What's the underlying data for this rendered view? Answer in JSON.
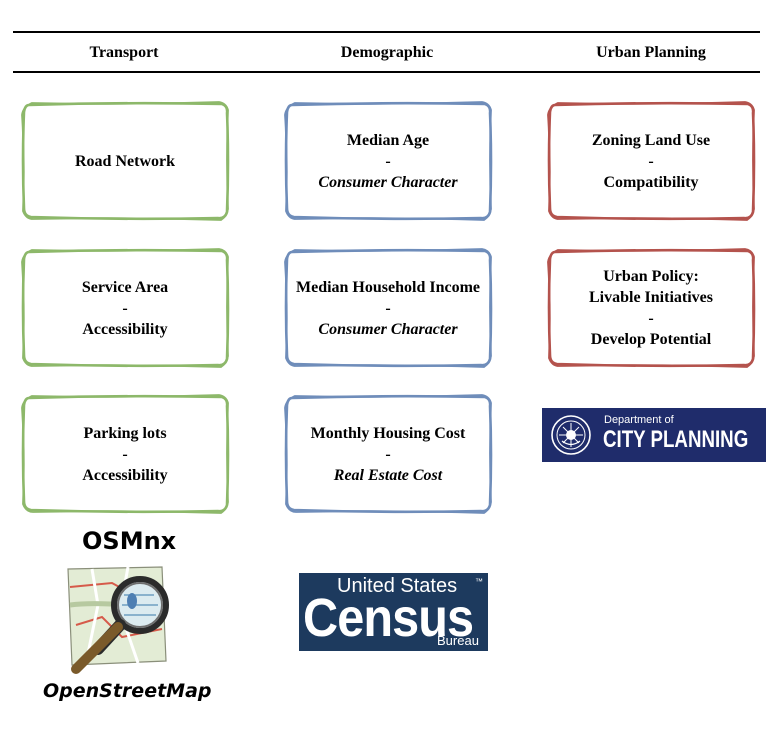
{
  "columns": [
    "Transport",
    "Demographic",
    "Urban Planning"
  ],
  "transport": [
    {
      "title": "Road Network",
      "sep": "",
      "sub": ""
    },
    {
      "title": "Service Area",
      "sep": "-",
      "sub": "Accessibility"
    },
    {
      "title": "Parking lots",
      "sep": "-",
      "sub": "Accessibility"
    }
  ],
  "demographic": [
    {
      "title": "Median Age",
      "sep": "-",
      "sub": "Consumer Character"
    },
    {
      "title": "Median Household Income",
      "sep": "-",
      "sub": "Consumer Character"
    },
    {
      "title": "Monthly Housing Cost",
      "sep": "-",
      "sub": "Real Estate Cost"
    }
  ],
  "urban": [
    {
      "line1": "Zoning Land Use",
      "sep": "-",
      "line2": "Compatibility"
    },
    {
      "line1": "Urban Policy:",
      "line2": "Livable Initiatives",
      "sep": "-",
      "line3": "Develop Potential"
    }
  ],
  "logos": {
    "osmnx": "OSMnx",
    "openstreetmap": "OpenStreetMap",
    "census_line1": "United States",
    "census_line2": "Census",
    "census_line3": "Bureau",
    "census_tm": "™",
    "dcp_line1": "Department of",
    "dcp_line2": "CITY PLANNING"
  },
  "colors": {
    "transport": "#8db86a",
    "demographic": "#6f8dba",
    "urban": "#b4534d",
    "census_bg": "#1d3a5e",
    "dcp_bg": "#1f2c6b"
  }
}
